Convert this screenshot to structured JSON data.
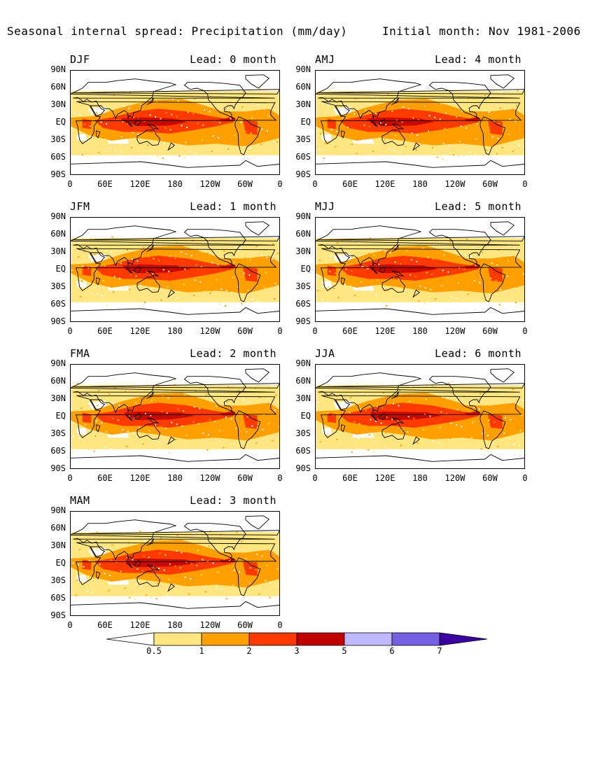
{
  "title": "Seasonal internal spread: Precipitation (mm/day)",
  "subtitle": "Initial month: Nov 1981-2006",
  "chart_data": {
    "type": "heatmap",
    "variable": "Precipitation",
    "units": "mm/day",
    "lat_ticks": [
      "90N",
      "60N",
      "30N",
      "EQ",
      "30S",
      "60S",
      "90S"
    ],
    "lon_ticks": [
      "0",
      "60E",
      "120E",
      "180",
      "120W",
      "60W",
      "0"
    ],
    "color_levels": [
      "0.5",
      "1",
      "2",
      "3",
      "5",
      "6",
      "7"
    ],
    "level_colors": [
      "#ffe680",
      "#ffa000",
      "#ff3a00",
      "#c00000",
      "#c0b8ff",
      "#7460e0",
      "#3a00a0"
    ],
    "below_color": "#ffffff",
    "panels": [
      {
        "season": "DJF",
        "lead_label": "Lead: 0 month",
        "lead": 0
      },
      {
        "season": "JFM",
        "lead_label": "Lead: 1 month",
        "lead": 1
      },
      {
        "season": "FMA",
        "lead_label": "Lead: 2 month",
        "lead": 2
      },
      {
        "season": "MAM",
        "lead_label": "Lead: 3 month",
        "lead": 3
      },
      {
        "season": "AMJ",
        "lead_label": "Lead: 4 month",
        "lead": 4
      },
      {
        "season": "MJJ",
        "lead_label": "Lead: 5 month",
        "lead": 5
      },
      {
        "season": "JJA",
        "lead_label": "Lead: 6 month",
        "lead": 6
      }
    ]
  }
}
